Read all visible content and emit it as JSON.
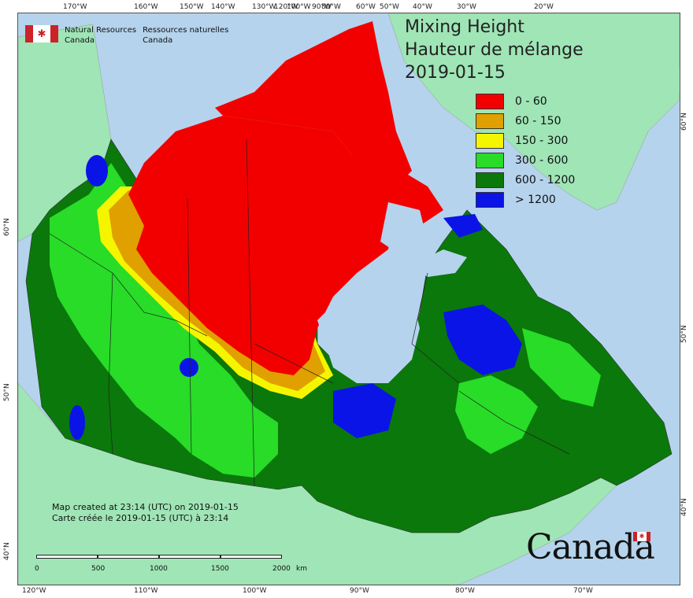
{
  "ticks": {
    "top": [
      "170°W",
      "160°W",
      "150°W",
      "140°W",
      "130°W",
      "120°W",
      "100°W",
      "90°W",
      "80°W",
      "60°W",
      "50°W",
      "40°W",
      "30°W",
      "20°W"
    ],
    "bottom": [
      "120°W",
      "110°W",
      "100°W",
      "90°W",
      "80°W",
      "70°W"
    ],
    "left": [
      "60°N",
      "50°N",
      "40°N"
    ],
    "right": [
      "60°N",
      "50°N",
      "40°N"
    ]
  },
  "agency": {
    "en_line1": "Natural Resources",
    "en_line2": "Canada",
    "fr_line1": "Ressources naturelles",
    "fr_line2": "Canada",
    "flag_icon": "maple-leaf"
  },
  "title": {
    "line1": "Mixing Height",
    "line2": "Hauteur de mélange",
    "date": "2019-01-15"
  },
  "legend": [
    {
      "label": "0 - 60",
      "color": "#f20000"
    },
    {
      "label": "60 - 150",
      "color": "#e0a000"
    },
    {
      "label": "150 - 300",
      "color": "#f5f500"
    },
    {
      "label": "300 - 600",
      "color": "#28dc28"
    },
    {
      "label": "600 - 1200",
      "color": "#0a780a"
    },
    {
      "label": "> 1200",
      "color": "#0a14e6"
    }
  ],
  "credits": {
    "en": "Map created at 23:14 (UTC) on 2019-01-15",
    "fr": "Carte créée le 2019-01-15 (UTC) à 23:14"
  },
  "scale": {
    "labels": [
      "0",
      "500",
      "1000",
      "1500",
      "2000"
    ],
    "unit": "km"
  },
  "wordmark": "Canada",
  "colors": {
    "water": "#b5d3ec",
    "land_outside": "#9fe5b6",
    "border": "#333333"
  }
}
